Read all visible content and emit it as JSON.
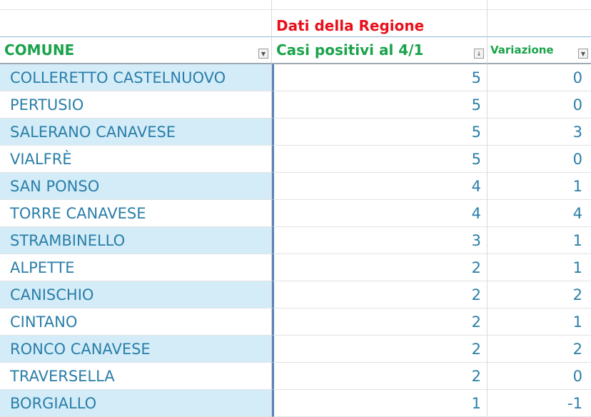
{
  "sheet": {
    "group_header": "Dati della Regione",
    "columns": [
      {
        "label": "COMUNE",
        "filter_icon": "dropdown-arrow-icon"
      },
      {
        "label": "Casi positivi al 4/1",
        "filter_icon": "sort-descending-icon"
      },
      {
        "label": "Variazione",
        "filter_icon": "dropdown-arrow-icon"
      }
    ],
    "rows": [
      {
        "comune": "COLLERETTO CASTELNUOVO",
        "casi": "5",
        "variazione": "0"
      },
      {
        "comune": "PERTUSIO",
        "casi": "5",
        "variazione": "0"
      },
      {
        "comune": "SALERANO CANAVESE",
        "casi": "5",
        "variazione": "3"
      },
      {
        "comune": "VIALFRÈ",
        "casi": "5",
        "variazione": "0"
      },
      {
        "comune": "SAN PONSO",
        "casi": "4",
        "variazione": "1"
      },
      {
        "comune": "TORRE CANAVESE",
        "casi": "4",
        "variazione": "4"
      },
      {
        "comune": "STRAMBINELLO",
        "casi": "3",
        "variazione": "1"
      },
      {
        "comune": "ALPETTE",
        "casi": "2",
        "variazione": "1"
      },
      {
        "comune": "CANISCHIO",
        "casi": "2",
        "variazione": "2"
      },
      {
        "comune": "CINTANO",
        "casi": "2",
        "variazione": "1"
      },
      {
        "comune": "RONCO CANAVESE",
        "casi": "2",
        "variazione": "2"
      },
      {
        "comune": "TRAVERSELLA",
        "casi": "2",
        "variazione": "0"
      },
      {
        "comune": "BORGIALLO",
        "casi": "1",
        "variazione": "-1"
      }
    ],
    "colors": {
      "header_red": "#e8101a",
      "header_green": "#1aa34a",
      "text_blue": "#2a7ea8",
      "band_blue": "#d3ecf8"
    }
  }
}
